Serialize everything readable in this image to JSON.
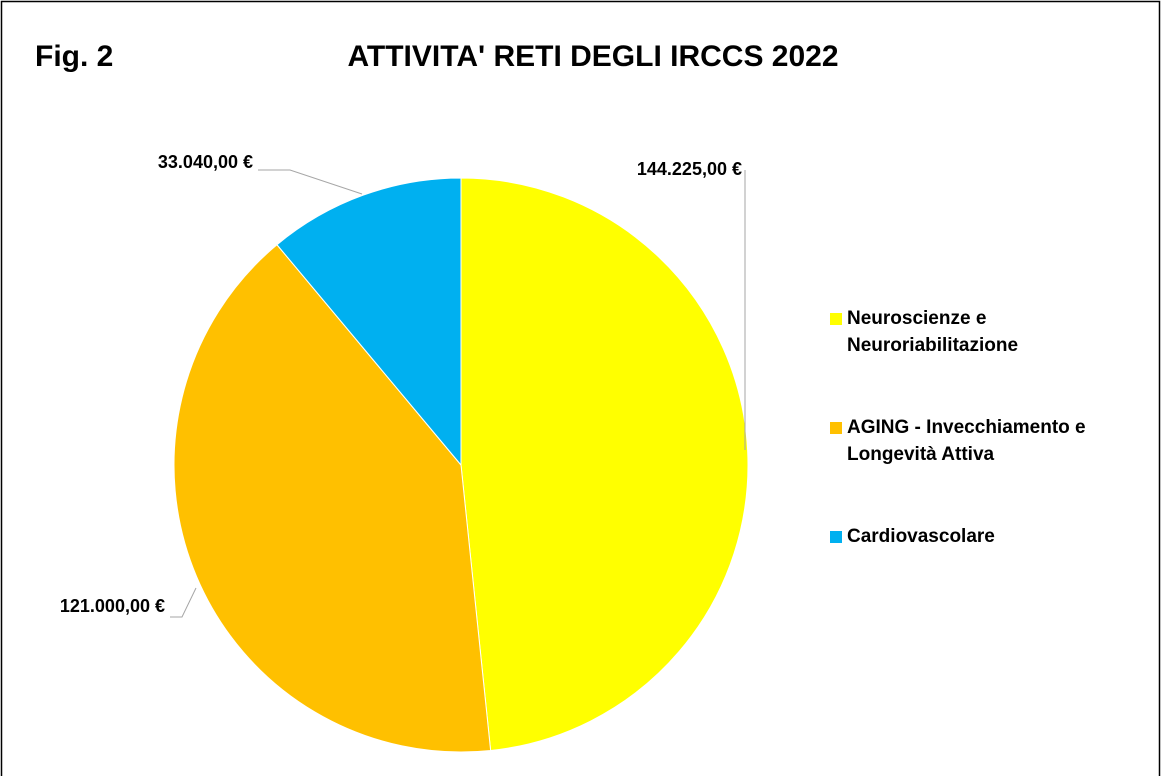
{
  "chart_data": {
    "type": "pie",
    "annotation": "Fig. 2",
    "title": "ATTIVITA' RETI DEGLI IRCCS 2022",
    "categories": [
      "Neuroscienze e Neuroriabilitazione",
      "AGING - Invecchiamento e Longevità Attiva",
      "Cardiovascolare"
    ],
    "values": [
      144225,
      121000,
      33040
    ],
    "value_labels": [
      "144.225,00 €",
      "121.000,00 €",
      "33.040,00 €"
    ],
    "colors": [
      "#ffff00",
      "#ffc000",
      "#00b0f0"
    ],
    "legend": "right"
  }
}
